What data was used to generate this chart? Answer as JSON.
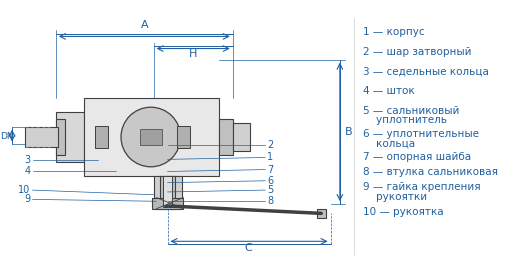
{
  "title": "",
  "background_color": "#ffffff",
  "text_color": "#2060a0",
  "line_color": "#404040",
  "legend_items": [
    "1 — корпус",
    "2 — шар затворный",
    "3 — седельные кольца",
    "4 — шток",
    "5 — сальниковый\n    уплотнитель",
    "6 — уплотнительные\n    кольца",
    "7 — опорная шайба",
    "8 — втулка сальниковая",
    "9 — гайка крепления\n    рукоятки",
    "10 — рукоятка"
  ],
  "dim_labels": [
    "C",
    "B",
    "A",
    "H",
    "DN"
  ],
  "part_labels": [
    "8",
    "5",
    "6",
    "7",
    "1",
    "2",
    "9",
    "10",
    "4",
    "3"
  ],
  "figsize": [
    5.2,
    2.74
  ],
  "dpi": 100
}
